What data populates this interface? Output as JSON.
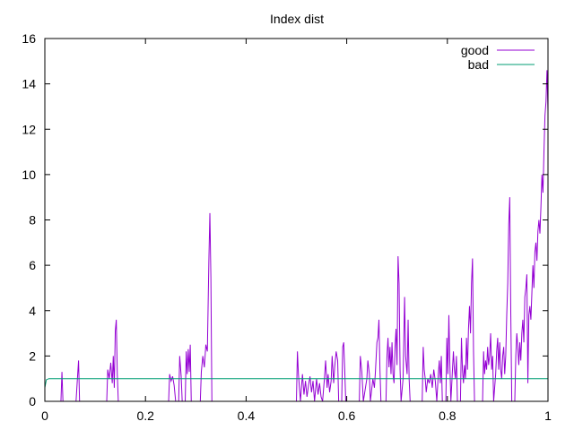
{
  "chart_data": {
    "type": "line",
    "title": "Index dist",
    "xlabel": "",
    "ylabel": "",
    "xlim": [
      0,
      1
    ],
    "ylim": [
      0,
      16
    ],
    "x_ticks": [
      0,
      0.2,
      0.4,
      0.6,
      0.8,
      1
    ],
    "x_tick_labels": [
      "0",
      "0.2",
      "0.4",
      "0.6",
      "0.8",
      "1"
    ],
    "y_ticks": [
      0,
      2,
      4,
      6,
      8,
      10,
      12,
      14,
      16
    ],
    "y_tick_labels": [
      "0",
      "2",
      "4",
      "6",
      "8",
      "10",
      "12",
      "14",
      "16"
    ],
    "grid": false,
    "legend_position": "top-right",
    "series": [
      {
        "name": "good",
        "color": "#9400d3",
        "points": [
          [
            0.032,
            0
          ],
          [
            0.034,
            1.3
          ],
          [
            0.036,
            0
          ],
          [
            0.062,
            0
          ],
          [
            0.065,
            1.1
          ],
          [
            0.067,
            1.8
          ],
          [
            0.069,
            0
          ],
          [
            0.123,
            0
          ],
          [
            0.125,
            1.4
          ],
          [
            0.128,
            1.0
          ],
          [
            0.131,
            1.7
          ],
          [
            0.134,
            0.8
          ],
          [
            0.136,
            2.0
          ],
          [
            0.138,
            0.6
          ],
          [
            0.14,
            3.1
          ],
          [
            0.142,
            3.6
          ],
          [
            0.144,
            1.2
          ],
          [
            0.146,
            0
          ],
          [
            0.246,
            0
          ],
          [
            0.248,
            1.2
          ],
          [
            0.251,
            0.9
          ],
          [
            0.254,
            1.1
          ],
          [
            0.257,
            0.7
          ],
          [
            0.26,
            0
          ],
          [
            0.266,
            0
          ],
          [
            0.268,
            2.0
          ],
          [
            0.271,
            1.1
          ],
          [
            0.273,
            0
          ],
          [
            0.279,
            0
          ],
          [
            0.281,
            2.2
          ],
          [
            0.283,
            1.2
          ],
          [
            0.285,
            2.3
          ],
          [
            0.287,
            1.3
          ],
          [
            0.289,
            2.5
          ],
          [
            0.291,
            0
          ],
          [
            0.309,
            0
          ],
          [
            0.311,
            1.3
          ],
          [
            0.314,
            2.0
          ],
          [
            0.317,
            1.5
          ],
          [
            0.32,
            2.5
          ],
          [
            0.323,
            2.2
          ],
          [
            0.326,
            6.2
          ],
          [
            0.328,
            8.3
          ],
          [
            0.33,
            5.5
          ],
          [
            0.332,
            0
          ],
          [
            0.5,
            0
          ],
          [
            0.502,
            2.2
          ],
          [
            0.504,
            1.2
          ],
          [
            0.506,
            0.6
          ],
          [
            0.508,
            0
          ],
          [
            0.512,
            1.2
          ],
          [
            0.515,
            0.3
          ],
          [
            0.518,
            0.9
          ],
          [
            0.521,
            0.2
          ],
          [
            0.524,
            0.7
          ],
          [
            0.527,
            1.1
          ],
          [
            0.53,
            0.4
          ],
          [
            0.533,
            0.9
          ],
          [
            0.536,
            0
          ],
          [
            0.54,
            1.0
          ],
          [
            0.543,
            0.3
          ],
          [
            0.546,
            0.8
          ],
          [
            0.549,
            0.2
          ],
          [
            0.552,
            0
          ],
          [
            0.556,
            1.1
          ],
          [
            0.558,
            1.8
          ],
          [
            0.561,
            0.6
          ],
          [
            0.563,
            1.2
          ],
          [
            0.566,
            0.4
          ],
          [
            0.569,
            0.9
          ],
          [
            0.571,
            2.0
          ],
          [
            0.574,
            0.8
          ],
          [
            0.576,
            1.5
          ],
          [
            0.579,
            2.2
          ],
          [
            0.582,
            1.8
          ],
          [
            0.584,
            0
          ],
          [
            0.59,
            0
          ],
          [
            0.592,
            2.4
          ],
          [
            0.594,
            2.6
          ],
          [
            0.596,
            1.4
          ],
          [
            0.598,
            0
          ],
          [
            0.625,
            0
          ],
          [
            0.627,
            2.0
          ],
          [
            0.63,
            1.3
          ],
          [
            0.633,
            0
          ],
          [
            0.64,
            1.0
          ],
          [
            0.642,
            1.8
          ],
          [
            0.645,
            1.2
          ],
          [
            0.647,
            0
          ],
          [
            0.652,
            1.0
          ],
          [
            0.655,
            0.6
          ],
          [
            0.657,
            1.3
          ],
          [
            0.66,
            2.6
          ],
          [
            0.662,
            2.8
          ],
          [
            0.664,
            3.6
          ],
          [
            0.666,
            1.4
          ],
          [
            0.668,
            0
          ],
          [
            0.678,
            0
          ],
          [
            0.68,
            2.0
          ],
          [
            0.682,
            2.8
          ],
          [
            0.684,
            1.5
          ],
          [
            0.686,
            2.4
          ],
          [
            0.688,
            1.2
          ],
          [
            0.69,
            2.6
          ],
          [
            0.692,
            1.2
          ],
          [
            0.694,
            0.8
          ],
          [
            0.696,
            2.4
          ],
          [
            0.698,
            3.2
          ],
          [
            0.7,
            1.6
          ],
          [
            0.702,
            6.4
          ],
          [
            0.704,
            5.2
          ],
          [
            0.706,
            1.4
          ],
          [
            0.708,
            0
          ],
          [
            0.712,
            1.0
          ],
          [
            0.715,
            4.6
          ],
          [
            0.717,
            2.0
          ],
          [
            0.72,
            1.2
          ],
          [
            0.722,
            3.6
          ],
          [
            0.724,
            1.0
          ],
          [
            0.726,
            0
          ],
          [
            0.75,
            0
          ],
          [
            0.752,
            2.4
          ],
          [
            0.754,
            1.4
          ],
          [
            0.756,
            1.0
          ],
          [
            0.758,
            0.4
          ],
          [
            0.761,
            1.0
          ],
          [
            0.764,
            0.8
          ],
          [
            0.767,
            1.2
          ],
          [
            0.77,
            0.6
          ],
          [
            0.773,
            1.4
          ],
          [
            0.776,
            0.9
          ],
          [
            0.779,
            0
          ],
          [
            0.782,
            1.2
          ],
          [
            0.784,
            1.8
          ],
          [
            0.786,
            0.8
          ],
          [
            0.788,
            2.0
          ],
          [
            0.79,
            0
          ],
          [
            0.797,
            0
          ],
          [
            0.799,
            2.8
          ],
          [
            0.801,
            1.2
          ],
          [
            0.803,
            3.8
          ],
          [
            0.805,
            1.6
          ],
          [
            0.807,
            0
          ],
          [
            0.812,
            2.2
          ],
          [
            0.814,
            1.4
          ],
          [
            0.816,
            1.0
          ],
          [
            0.818,
            2.0
          ],
          [
            0.82,
            0
          ],
          [
            0.826,
            0
          ],
          [
            0.828,
            2.8
          ],
          [
            0.83,
            1.4
          ],
          [
            0.832,
            0.8
          ],
          [
            0.834,
            1.6
          ],
          [
            0.836,
            1.0
          ],
          [
            0.838,
            2.8
          ],
          [
            0.84,
            1.4
          ],
          [
            0.842,
            3.2
          ],
          [
            0.844,
            4.2
          ],
          [
            0.846,
            3.0
          ],
          [
            0.848,
            5.2
          ],
          [
            0.85,
            6.3
          ],
          [
            0.852,
            2.2
          ],
          [
            0.854,
            0
          ],
          [
            0.87,
            0
          ],
          [
            0.872,
            2.2
          ],
          [
            0.874,
            1.2
          ],
          [
            0.876,
            1.8
          ],
          [
            0.878,
            1.4
          ],
          [
            0.88,
            2.4
          ],
          [
            0.882,
            1.6
          ],
          [
            0.884,
            2.0
          ],
          [
            0.886,
            3.0
          ],
          [
            0.888,
            1.4
          ],
          [
            0.89,
            2.0
          ],
          [
            0.892,
            0
          ],
          [
            0.896,
            1.2
          ],
          [
            0.898,
            2.2
          ],
          [
            0.9,
            2.8
          ],
          [
            0.902,
            1.4
          ],
          [
            0.904,
            2.6
          ],
          [
            0.906,
            1.4
          ],
          [
            0.908,
            1.0
          ],
          [
            0.91,
            2.0
          ],
          [
            0.912,
            2.4
          ],
          [
            0.914,
            1.2
          ],
          [
            0.916,
            2.0
          ],
          [
            0.918,
            3.8
          ],
          [
            0.92,
            5.2
          ],
          [
            0.922,
            7.8
          ],
          [
            0.924,
            9.0
          ],
          [
            0.926,
            4.0
          ],
          [
            0.928,
            0
          ],
          [
            0.934,
            0
          ],
          [
            0.936,
            2.0
          ],
          [
            0.938,
            3.0
          ],
          [
            0.94,
            2.4
          ],
          [
            0.942,
            1.6
          ],
          [
            0.944,
            2.6
          ],
          [
            0.946,
            1.8
          ],
          [
            0.948,
            3.0
          ],
          [
            0.95,
            3.6
          ],
          [
            0.952,
            2.6
          ],
          [
            0.954,
            4.6
          ],
          [
            0.956,
            5.0
          ],
          [
            0.958,
            5.6
          ],
          [
            0.96,
            0.8
          ],
          [
            0.962,
            3.8
          ],
          [
            0.964,
            4.2
          ],
          [
            0.966,
            3.6
          ],
          [
            0.968,
            4.8
          ],
          [
            0.97,
            6.0
          ],
          [
            0.972,
            5.0
          ],
          [
            0.974,
            6.6
          ],
          [
            0.976,
            7.0
          ],
          [
            0.978,
            6.2
          ],
          [
            0.98,
            7.5
          ],
          [
            0.982,
            8.0
          ],
          [
            0.984,
            7.4
          ],
          [
            0.986,
            8.6
          ],
          [
            0.988,
            10.0
          ],
          [
            0.99,
            9.2
          ],
          [
            0.992,
            11.0
          ],
          [
            0.994,
            12.6
          ],
          [
            0.996,
            13.2
          ],
          [
            0.998,
            14.6
          ],
          [
            1.0,
            12.8
          ]
        ]
      },
      {
        "name": "bad",
        "color": "#009e73",
        "points": [
          [
            0,
            0.6
          ],
          [
            0.003,
            0.95
          ],
          [
            0.008,
            1.0
          ],
          [
            1.0,
            1.0
          ]
        ]
      }
    ]
  }
}
